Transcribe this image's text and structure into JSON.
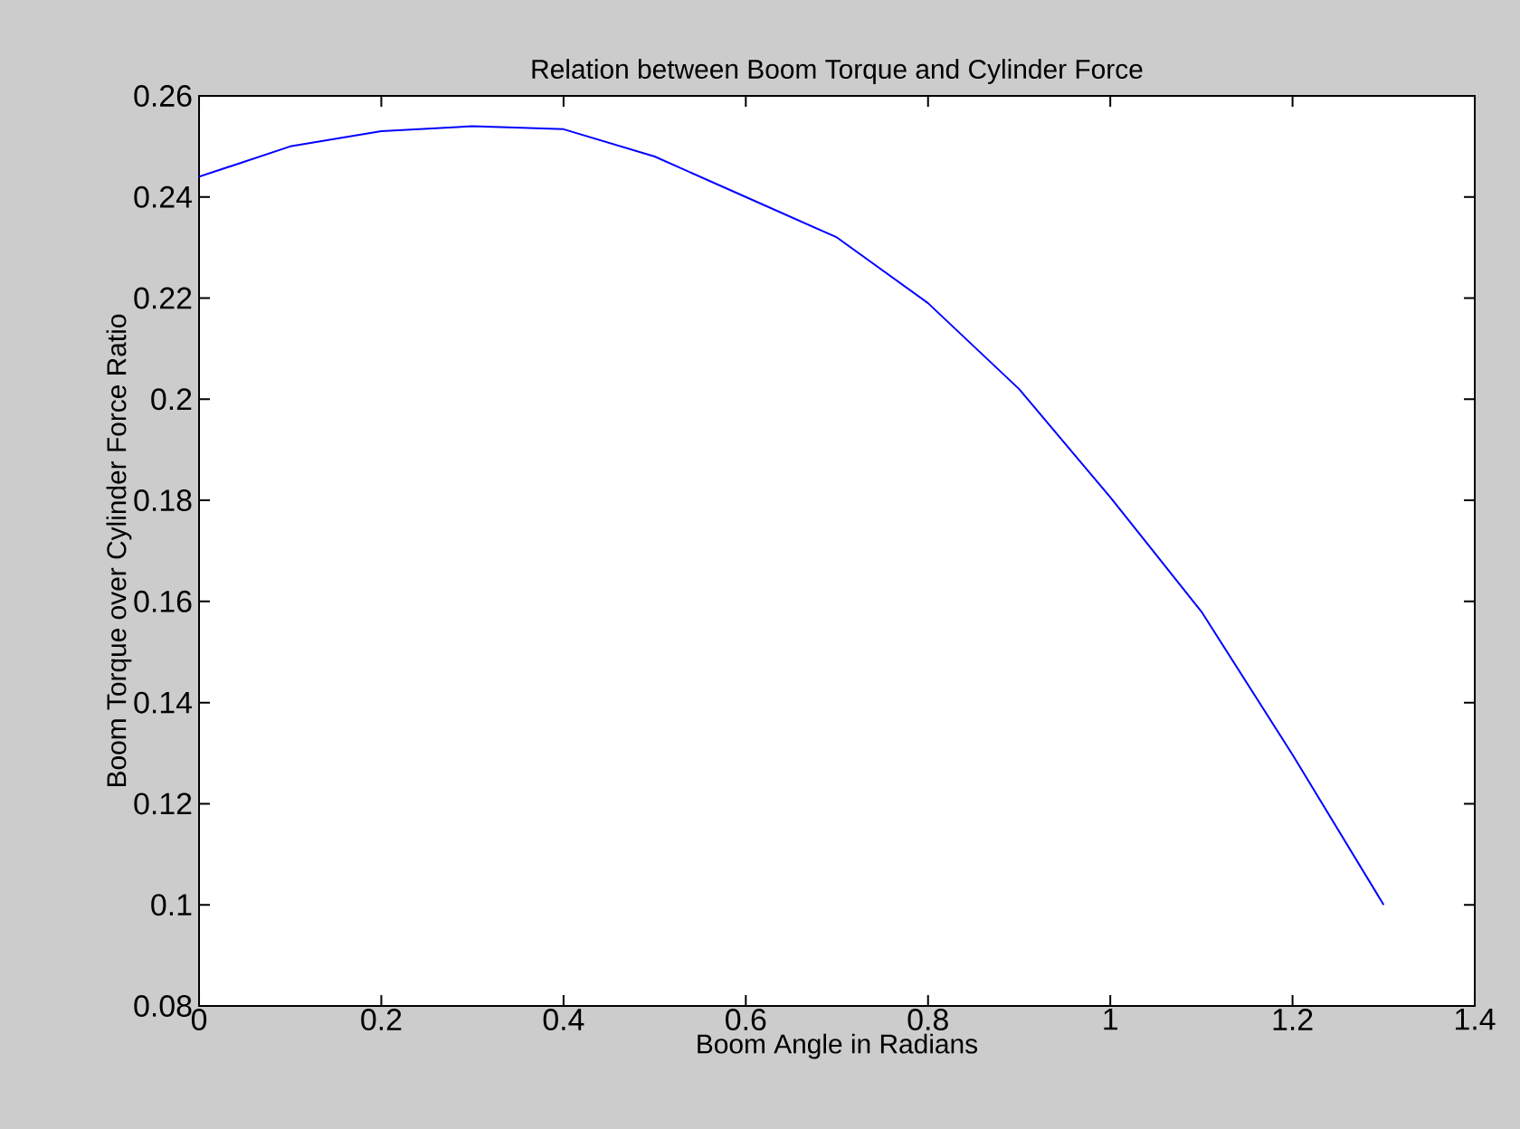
{
  "chart_data": {
    "type": "line",
    "title": "Relation between Boom Torque and Cylinder Force",
    "xlabel": "Boom Angle in Radians",
    "ylabel": "Boom Torque over Cylinder Force Ratio",
    "x": [
      0,
      0.1,
      0.2,
      0.3,
      0.4,
      0.5,
      0.6,
      0.7,
      0.8,
      0.9,
      1.0,
      1.1,
      1.2,
      1.3
    ],
    "series": [
      {
        "color": "#0000ff",
        "values": [
          0.244,
          0.25,
          0.253,
          0.254,
          0.2534,
          0.248,
          0.24,
          0.232,
          0.219,
          0.202,
          0.1806,
          0.158,
          0.1297,
          0.1
        ]
      }
    ],
    "xlim": [
      0,
      1.4
    ],
    "xticks": [
      0,
      0.2,
      0.4,
      0.6,
      0.8,
      1,
      1.2,
      1.4
    ],
    "ylim": [
      0.08,
      0.26
    ],
    "yticks": [
      0.08,
      0.1,
      0.12,
      0.14,
      0.16,
      0.18,
      0.2,
      0.22,
      0.24,
      0.26
    ],
    "grid": false,
    "marker": "none",
    "line_style": "solid"
  }
}
